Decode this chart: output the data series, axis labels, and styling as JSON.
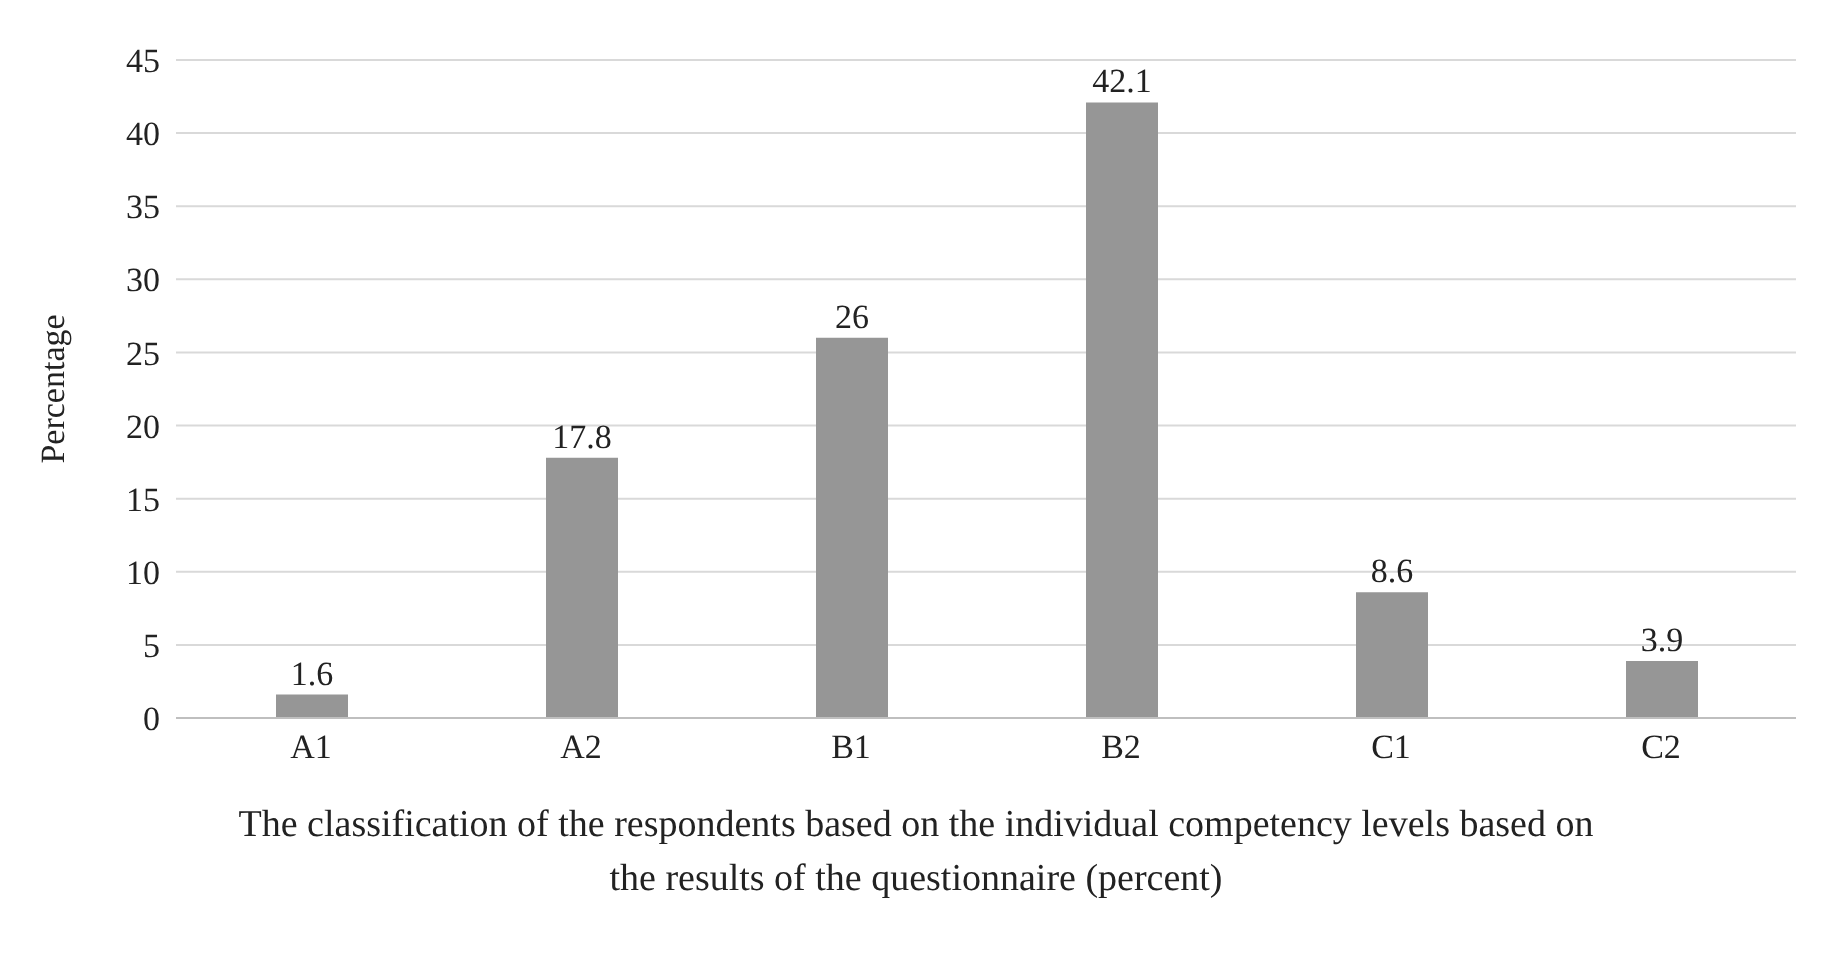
{
  "chart_data": {
    "type": "bar",
    "xlabel": "The classification of the respondents based on the individual competency levels based on the results of the questionnaire   (percent)",
    "ylabel": "Percentage",
    "categories": [
      "A1",
      "A2",
      "B1",
      "B2",
      "C1",
      "C2"
    ],
    "values": [
      1.6,
      17.8,
      26,
      42.1,
      8.6,
      3.9
    ],
    "color": "#969696",
    "ylim": [
      0,
      45
    ],
    "yticks": [
      0,
      5,
      10,
      15,
      20,
      25,
      30,
      35,
      40,
      45
    ],
    "grid": "y",
    "data_labels": true
  }
}
